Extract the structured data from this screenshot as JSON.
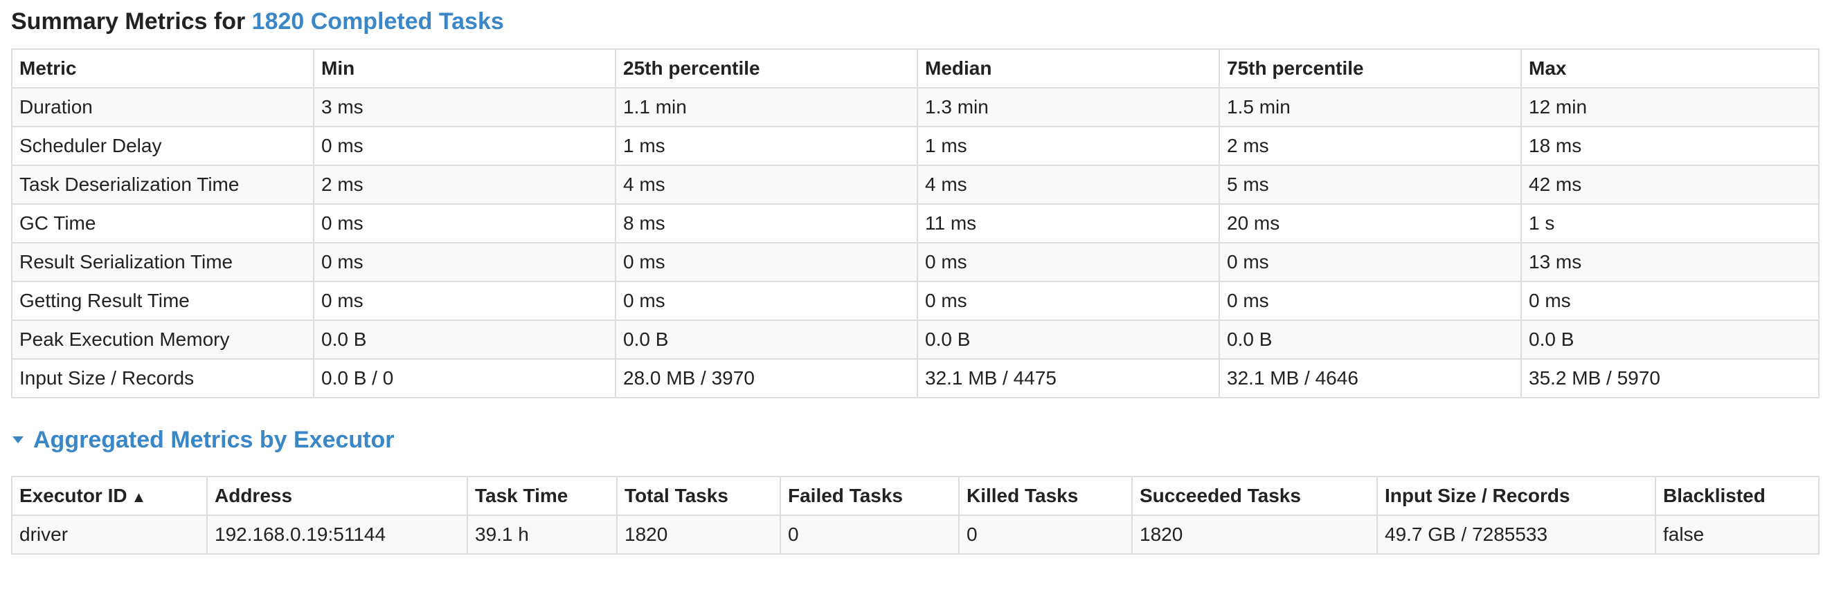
{
  "summary": {
    "title_prefix": "Summary Metrics for ",
    "title_link": "1820 Completed Tasks",
    "columns": [
      "Metric",
      "Min",
      "25th percentile",
      "Median",
      "75th percentile",
      "Max"
    ],
    "rows": [
      [
        "Duration",
        "3 ms",
        "1.1 min",
        "1.3 min",
        "1.5 min",
        "12 min"
      ],
      [
        "Scheduler Delay",
        "0 ms",
        "1 ms",
        "1 ms",
        "2 ms",
        "18 ms"
      ],
      [
        "Task Deserialization Time",
        "2 ms",
        "4 ms",
        "4 ms",
        "5 ms",
        "42 ms"
      ],
      [
        "GC Time",
        "0 ms",
        "8 ms",
        "11 ms",
        "20 ms",
        "1 s"
      ],
      [
        "Result Serialization Time",
        "0 ms",
        "0 ms",
        "0 ms",
        "0 ms",
        "13 ms"
      ],
      [
        "Getting Result Time",
        "0 ms",
        "0 ms",
        "0 ms",
        "0 ms",
        "0 ms"
      ],
      [
        "Peak Execution Memory",
        "0.0 B",
        "0.0 B",
        "0.0 B",
        "0.0 B",
        "0.0 B"
      ],
      [
        "Input Size / Records",
        "0.0 B / 0",
        "28.0 MB / 3970",
        "32.1 MB / 4475",
        "32.1 MB / 4646",
        "35.2 MB / 5970"
      ]
    ]
  },
  "aggregated": {
    "title": "Aggregated Metrics by Executor",
    "sort_arrow": "▲",
    "columns": [
      "Executor ID",
      "Address",
      "Task Time",
      "Total Tasks",
      "Failed Tasks",
      "Killed Tasks",
      "Succeeded Tasks",
      "Input Size / Records",
      "Blacklisted"
    ],
    "rows": [
      [
        "driver",
        "192.168.0.19:51144",
        "39.1 h",
        "1820",
        "0",
        "0",
        "1820",
        "49.7 GB / 7285533",
        "false"
      ]
    ]
  },
  "colors": {
    "link": "#3a87c8",
    "border": "#dddddd",
    "stripe": "#f9f9f9"
  },
  "icons": {
    "collapse": "caret-down-icon",
    "sort": "sort-ascending-icon"
  }
}
